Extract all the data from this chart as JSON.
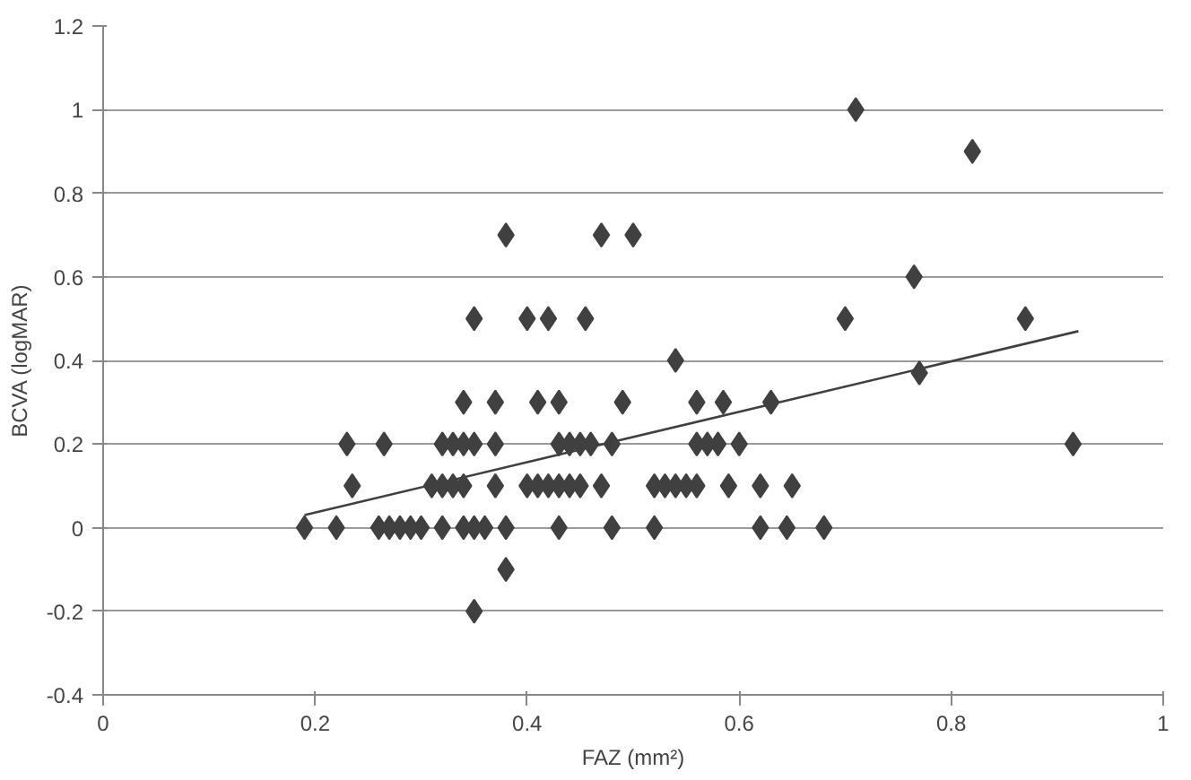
{
  "chart_data": {
    "type": "scatter",
    "xlabel": "FAZ (mm²)",
    "ylabel": "BCVA (logMAR)",
    "xlim": [
      0,
      1
    ],
    "xticks": [
      0,
      0.2,
      0.4,
      0.6,
      0.8,
      1
    ],
    "ylim": [
      -0.4,
      1.2
    ],
    "yticks": [
      -0.4,
      -0.2,
      0,
      0.2,
      0.4,
      0.6,
      0.8,
      1,
      1.2
    ],
    "grid": "y",
    "marker": "diamond",
    "series": [
      {
        "color": "#404040",
        "x": [
          0.19,
          0.22,
          0.26,
          0.27,
          0.28,
          0.29,
          0.3,
          0.32,
          0.34,
          0.35,
          0.36,
          0.38,
          0.43,
          0.48,
          0.52,
          0.62,
          0.645,
          0.68,
          0.235,
          0.31,
          0.32,
          0.33,
          0.34,
          0.37,
          0.4,
          0.41,
          0.42,
          0.43,
          0.44,
          0.45,
          0.47,
          0.52,
          0.53,
          0.54,
          0.55,
          0.56,
          0.59,
          0.62,
          0.65,
          0.23,
          0.265,
          0.32,
          0.33,
          0.34,
          0.35,
          0.37,
          0.43,
          0.44,
          0.45,
          0.46,
          0.48,
          0.56,
          0.57,
          0.58,
          0.6,
          0.34,
          0.37,
          0.41,
          0.43,
          0.49,
          0.56,
          0.585,
          0.63,
          0.54,
          0.35,
          0.4,
          0.42,
          0.455,
          0.7,
          0.38,
          0.47,
          0.5,
          0.38,
          0.35,
          0.71,
          0.82,
          0.765,
          0.87,
          0.77,
          0.915
        ],
        "values": [
          0,
          0,
          0,
          0,
          0,
          0,
          0,
          0,
          0,
          0,
          0,
          0,
          0,
          0,
          0,
          0,
          0,
          0,
          0.1,
          0.1,
          0.1,
          0.1,
          0.1,
          0.1,
          0.1,
          0.1,
          0.1,
          0.1,
          0.1,
          0.1,
          0.1,
          0.1,
          0.1,
          0.1,
          0.1,
          0.1,
          0.1,
          0.1,
          0.1,
          0.2,
          0.2,
          0.2,
          0.2,
          0.2,
          0.2,
          0.2,
          0.2,
          0.2,
          0.2,
          0.2,
          0.2,
          0.2,
          0.2,
          0.2,
          0.2,
          0.3,
          0.3,
          0.3,
          0.3,
          0.3,
          0.3,
          0.3,
          0.3,
          0.4,
          0.5,
          0.5,
          0.5,
          0.5,
          0.5,
          0.7,
          0.7,
          0.7,
          -0.1,
          -0.2,
          1,
          0.9,
          0.6,
          0.5,
          0.37,
          0.2
        ]
      },
      {
        "type": "line",
        "color": "#404040",
        "marker": "none",
        "x": [
          0.19,
          0.92
        ],
        "values": [
          0.03,
          0.47
        ]
      }
    ]
  }
}
